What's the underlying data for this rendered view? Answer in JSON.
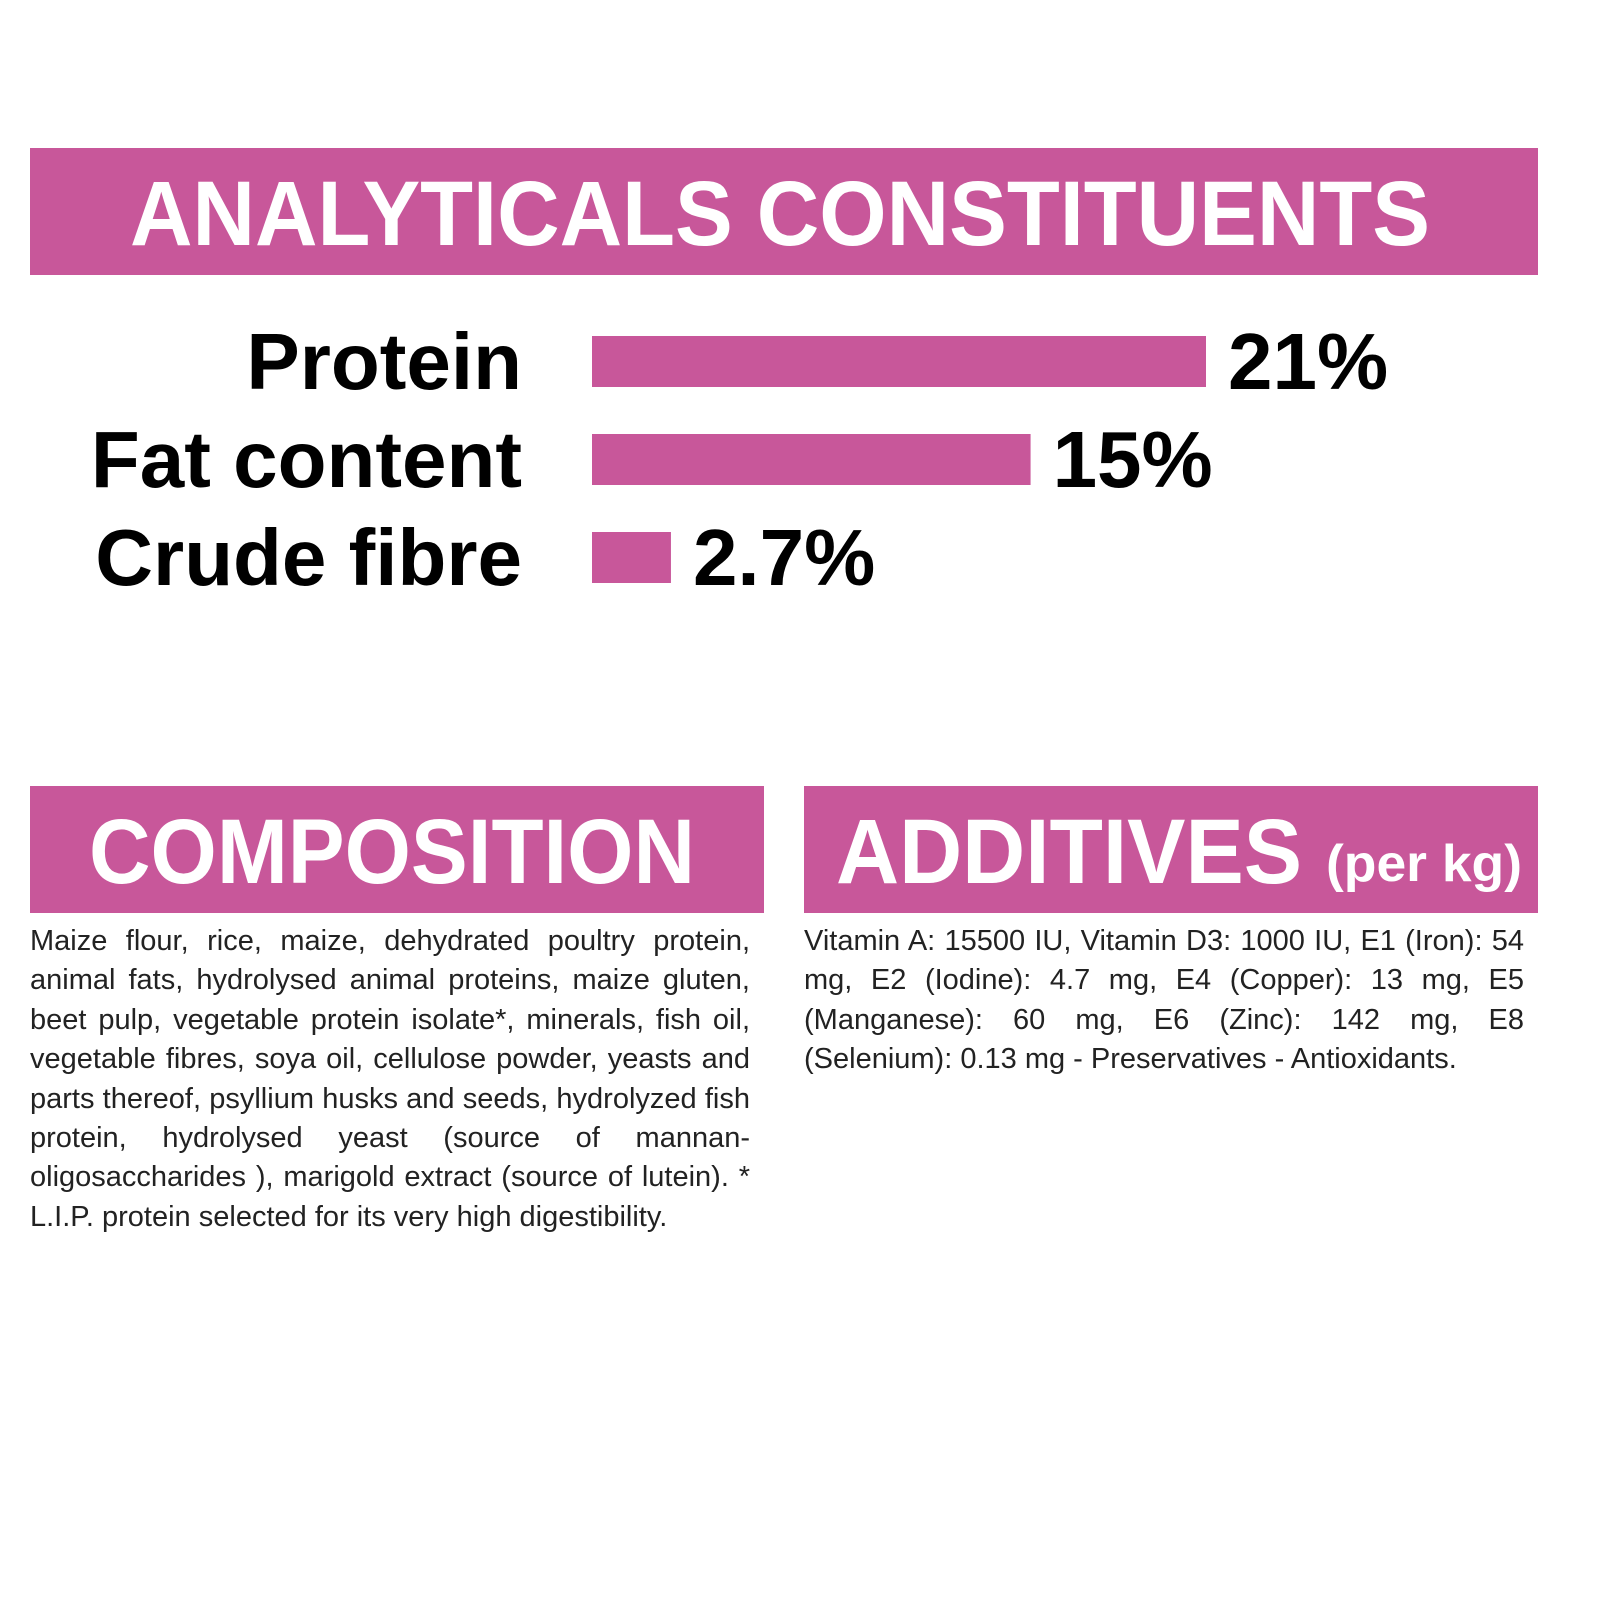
{
  "chart_data": {
    "type": "bar",
    "title": "ANALYTICALS CONSTITUENTS",
    "categories": [
      "Protein",
      "Fat content",
      "Crude fibre"
    ],
    "values": [
      21,
      15,
      2.7
    ],
    "value_labels": [
      "21%",
      "15%",
      "2.7%"
    ],
    "color": "#c8579a"
  },
  "composition": {
    "title": "COMPOSITION",
    "text": "Maize flour, rice, maize, dehydrated poultry protein, animal fats, hydrolysed animal proteins, maize gluten, beet pulp, vegetable protein isolate*, minerals, fish oil, vegetable fibres, soya oil, cellulose powder, yeasts and parts thereof, psyllium husks and seeds, hydrolyzed fish protein, hydrolysed yeast (source of mannan-oligosaccharides ), marigold extract (source of lutein). * L.I.P. protein selected for its very high digestibility."
  },
  "additives": {
    "title": "ADDITIVES",
    "subtitle": "(per kg)",
    "text": "Vitamin A: 15500 IU, Vitamin D3: 1000 IU, E1 (Iron): 54 mg, E2 (Iodine): 4.7 mg, E4 (Copper): 13 mg, E5 (Manganese): 60 mg, E6 (Zinc): 142 mg, E8 (Selenium): 0.13 mg - Preservatives - Antioxidants."
  }
}
